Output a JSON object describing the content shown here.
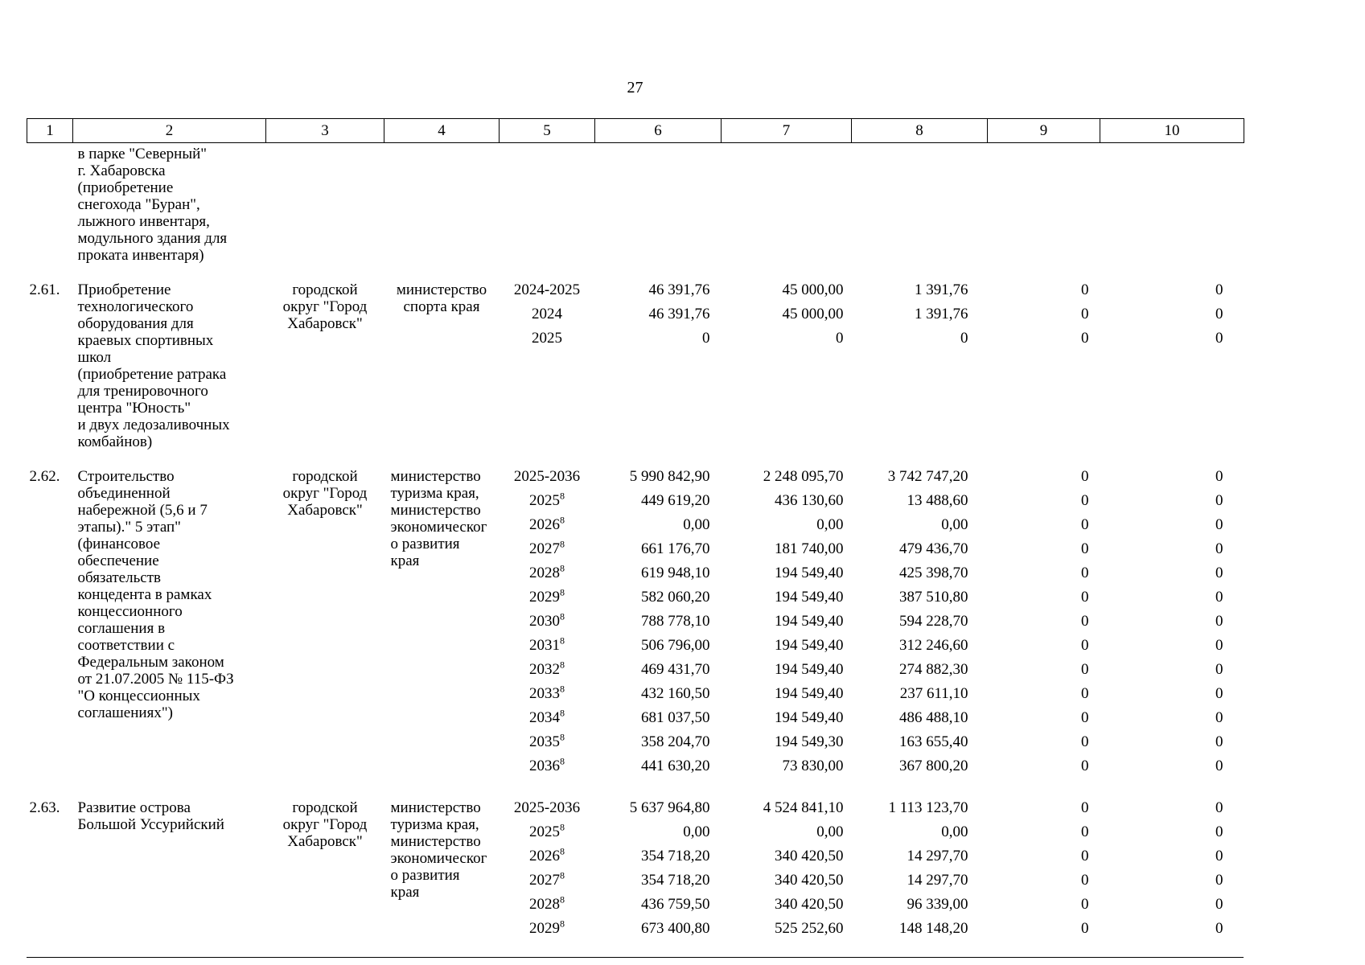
{
  "page": {
    "number": "27"
  },
  "table": {
    "col_headers": [
      "1",
      "2",
      "3",
      "4",
      "5",
      "6",
      "7",
      "8",
      "9",
      "10"
    ],
    "rows": [
      {
        "num": "",
        "desc": "в парке \"Северный\"\nг. Хабаровска\n(приобретение\nснегохода \"Буран\",\nлыжного инвентаря,\nмодульного здания для\nпроката инвентаря)",
        "territory": "",
        "ministry": "",
        "ministry_align": "center",
        "fin": []
      },
      {
        "num": "2.61.",
        "desc": "Приобретение\nтехнологического\nоборудования для\nкраевых спортивных\nшкол\n(приобретение ратрака\nдля тренировочного\nцентра \"Юность\"\nи двух ледозаливочных\nкомбайнов)",
        "territory": "городской\nокруг \"Город\nХабаровск\"",
        "ministry": "министерство\nспорта края",
        "ministry_align": "center",
        "fin": [
          {
            "year": "2024-2025",
            "sup": "",
            "v": [
              "46 391,76",
              "45 000,00",
              "1 391,76",
              "0",
              "0"
            ]
          },
          {
            "year": "2024",
            "sup": "",
            "v": [
              "46 391,76",
              "45 000,00",
              "1 391,76",
              "0",
              "0"
            ]
          },
          {
            "year": "2025",
            "sup": "",
            "v": [
              "0",
              "0",
              "0",
              "0",
              "0"
            ]
          }
        ]
      },
      {
        "num": "2.62.",
        "desc": "Строительство\nобъединенной\nнабережной (5,6 и 7\nэтапы).\" 5 этап\"\n(финансовое\nобеспечение\nобязательств\nконцедента в рамках\nконцессионного\nсоглашения в\nсоответствии с\nФедеральным законом\nот 21.07.2005 № 115-ФЗ\n\"О концессионных\nсоглашениях\")",
        "territory": "городской\nокруг \"Город\nХабаровск\"",
        "ministry": "министерство\nтуризма края,\nминистерство\nэкономическог\nо развития\nкрая",
        "ministry_align": "left",
        "fin": [
          {
            "year": "2025-2036",
            "sup": "",
            "v": [
              "5 990 842,90",
              "2 248 095,70",
              "3 742 747,20",
              "0",
              "0"
            ]
          },
          {
            "year": "2025",
            "sup": "8",
            "v": [
              "449 619,20",
              "436 130,60",
              "13 488,60",
              "0",
              "0"
            ]
          },
          {
            "year": "2026",
            "sup": "8",
            "v": [
              "0,00",
              "0,00",
              "0,00",
              "0",
              "0"
            ]
          },
          {
            "year": "2027",
            "sup": "8",
            "v": [
              "661 176,70",
              "181 740,00",
              "479 436,70",
              "0",
              "0"
            ]
          },
          {
            "year": "2028",
            "sup": "8",
            "v": [
              "619 948,10",
              "194 549,40",
              "425 398,70",
              "0",
              "0"
            ]
          },
          {
            "year": "2029",
            "sup": "8",
            "v": [
              "582 060,20",
              "194 549,40",
              "387 510,80",
              "0",
              "0"
            ]
          },
          {
            "year": "2030",
            "sup": "8",
            "v": [
              "788 778,10",
              "194 549,40",
              "594 228,70",
              "0",
              "0"
            ]
          },
          {
            "year": "2031",
            "sup": "8",
            "v": [
              "506 796,00",
              "194 549,40",
              "312 246,60",
              "0",
              "0"
            ]
          },
          {
            "year": "2032",
            "sup": "8",
            "v": [
              "469 431,70",
              "194 549,40",
              "274 882,30",
              "0",
              "0"
            ]
          },
          {
            "year": "2033",
            "sup": "8",
            "v": [
              "432 160,50",
              "194 549,40",
              "237 611,10",
              "0",
              "0"
            ]
          },
          {
            "year": "2034",
            "sup": "8",
            "v": [
              "681 037,50",
              "194 549,40",
              "486 488,10",
              "0",
              "0"
            ]
          },
          {
            "year": "2035",
            "sup": "8",
            "v": [
              "358 204,70",
              "194 549,30",
              "163 655,40",
              "0",
              "0"
            ]
          },
          {
            "year": "2036",
            "sup": "8",
            "v": [
              "441 630,20",
              "73 830,00",
              "367 800,20",
              "0",
              "0"
            ]
          }
        ]
      },
      {
        "num": "2.63.",
        "desc": "Развитие острова\nБольшой Уссурийский",
        "territory": "городской\nокруг \"Город\nХабаровск\"",
        "ministry": "министерство\nтуризма края,\nминистерство\nэкономическог\nо развития\nкрая",
        "ministry_align": "left",
        "fin": [
          {
            "year": "2025-2036",
            "sup": "",
            "v": [
              "5 637 964,80",
              "4 524 841,10",
              "1 113 123,70",
              "0",
              "0"
            ]
          },
          {
            "year": "2025",
            "sup": "8",
            "v": [
              "0,00",
              "0,00",
              "0,00",
              "0",
              "0"
            ]
          },
          {
            "year": "2026",
            "sup": "8",
            "v": [
              "354 718,20",
              "340 420,50",
              "14 297,70",
              "0",
              "0"
            ]
          },
          {
            "year": "2027",
            "sup": "8",
            "v": [
              "354 718,20",
              "340 420,50",
              "14 297,70",
              "0",
              "0"
            ]
          },
          {
            "year": "2028",
            "sup": "8",
            "v": [
              "436 759,50",
              "340 420,50",
              "96 339,00",
              "0",
              "0"
            ]
          },
          {
            "year": "2029",
            "sup": "8",
            "v": [
              "673 400,80",
              "525 252,60",
              "148 148,20",
              "0",
              "0"
            ]
          }
        ]
      }
    ]
  }
}
